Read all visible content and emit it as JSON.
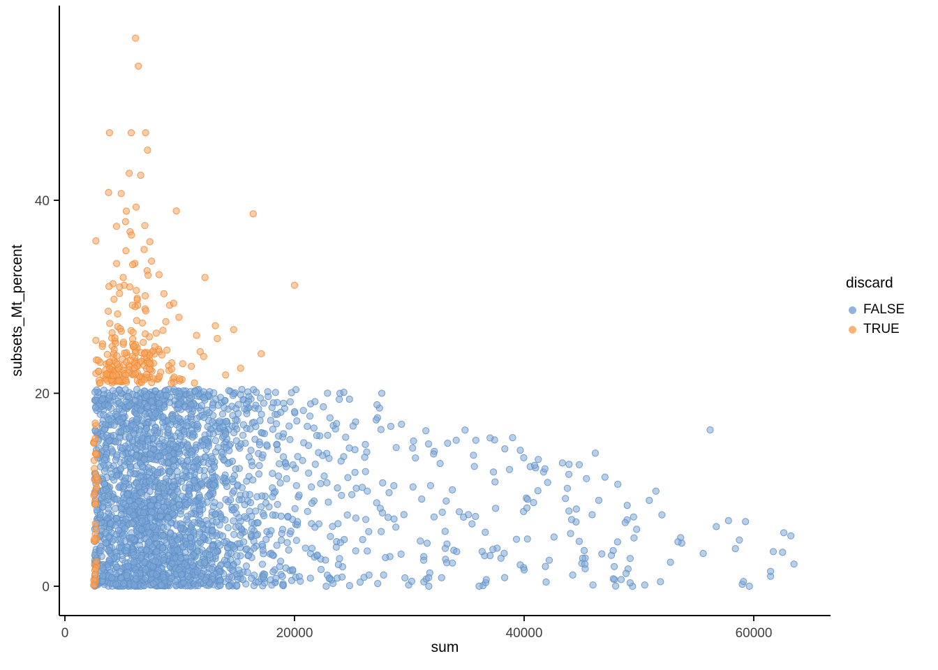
{
  "figure": {
    "background": "#FFFFFF"
  },
  "chart_data": {
    "type": "scatter",
    "title": "",
    "xlabel": "sum",
    "ylabel": "subsets_Mt_percent",
    "xlim": [
      0,
      66000
    ],
    "ylim": [
      0,
      59
    ],
    "x_ticks": [
      0,
      20000,
      40000,
      60000
    ],
    "x_tick_labels": [
      "0",
      "20000",
      "40000",
      "60000"
    ],
    "y_ticks": [
      0,
      20,
      40
    ],
    "y_tick_labels": [
      "0",
      "20",
      "40"
    ],
    "grid": false,
    "seed": 20240817,
    "point_radius": 4.6,
    "point_fill_opacity": 0.55,
    "axis_color": "#000000",
    "tick_label_color": "#404040",
    "legend": {
      "title": "discard",
      "position": "right",
      "entries": [
        {
          "label": "FALSE",
          "color": "#7DA7D8"
        },
        {
          "label": "TRUE",
          "color": "#FAA55F"
        }
      ]
    },
    "series": [
      {
        "name": "FALSE",
        "legend_label": "FALSE",
        "color": "#7DA7D8",
        "stroke": "#5E8FC4",
        "n": 2600,
        "sum_min": 2600,
        "sum_max": 64000,
        "sum_mix": [
          {
            "w": 0.06,
            "type": "expunif",
            "base": 2600,
            "spread": 0.45
          },
          {
            "w": 0.87,
            "type": "lognorm",
            "mu": 9.1,
            "sigma": 0.48
          },
          {
            "w": 0.065,
            "type": "unif",
            "min": 18000,
            "max": 50000
          },
          {
            "w": 0.005,
            "type": "unif",
            "min": 50000,
            "max": 64000
          }
        ],
        "envelope": {
          "flat_until": 24000,
          "max": 20.4,
          "min": 4,
          "slope": 0.00038
        },
        "mt_pow": 1.3,
        "top_frac": 0.05,
        "extra_points": [
          [
            63500,
            2.3
          ],
          [
            56200,
            16.2
          ],
          [
            57800,
            6.8
          ],
          [
            58400,
            3.9
          ],
          [
            52000,
            7.4
          ],
          [
            49800,
            5.9
          ],
          [
            50900,
            8.9
          ],
          [
            46200,
            13.8
          ],
          [
            44800,
            12.6
          ],
          [
            47600,
            3.2
          ],
          [
            43900,
            7.8
          ],
          [
            41200,
            9.9
          ],
          [
            39000,
            15.4
          ],
          [
            27600,
            20.0
          ],
          [
            24300,
            20.1
          ],
          [
            45100,
            2.9
          ],
          [
            48800,
            6.6
          ],
          [
            53400,
            4.6
          ],
          [
            55600,
            3.4
          ],
          [
            42600,
            5.1
          ]
        ]
      },
      {
        "name": "TRUE",
        "legend_label": "TRUE",
        "color": "#FAA55F",
        "stroke": "#EE8A35",
        "n": 270,
        "strip_frac": 0.18,
        "strip": {
          "base": 2500,
          "sd": 180,
          "min": 2450,
          "max": 3500,
          "mt_pow": 1.1,
          "mt_max": 17
        },
        "main": {
          "mu": 8.62,
          "sigma": 0.33,
          "min": 2700,
          "max": 23000
        },
        "mt_mix": [
          {
            "w": 0.55,
            "base": 21,
            "exp_mean": 1.4
          },
          {
            "w": 0.45,
            "base": 23,
            "exp_mean": 4.5
          }
        ],
        "mt_cap": 47,
        "extra_points": [
          [
            6150,
            56.8
          ],
          [
            6400,
            53.9
          ],
          [
            7200,
            45.2
          ],
          [
            5600,
            42.8
          ],
          [
            6600,
            42.6
          ],
          [
            4900,
            40.7
          ],
          [
            6200,
            39.3
          ],
          [
            9700,
            38.9
          ],
          [
            16400,
            38.6
          ],
          [
            4500,
            37.3
          ],
          [
            5800,
            36.4
          ],
          [
            7400,
            35.7
          ],
          [
            6900,
            34.9
          ],
          [
            8200,
            32.3
          ],
          [
            12200,
            32.0
          ],
          [
            20000,
            31.2
          ],
          [
            7000,
            30.1
          ],
          [
            13100,
            27.0
          ],
          [
            14700,
            26.6
          ],
          [
            17100,
            24.1
          ],
          [
            15300,
            22.6
          ],
          [
            14000,
            21.9
          ]
        ]
      }
    ]
  }
}
